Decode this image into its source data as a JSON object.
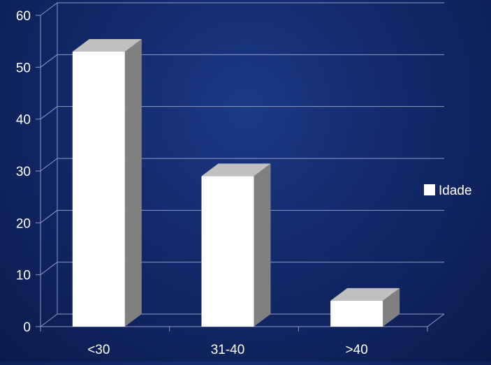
{
  "chart_data": {
    "type": "bar",
    "categories": [
      "<30",
      "31-40",
      ">40"
    ],
    "series": [
      {
        "name": "Idade",
        "values": [
          53,
          29,
          5
        ]
      }
    ],
    "ylim": [
      0,
      60
    ],
    "yticks": [
      0,
      10,
      20,
      30,
      40,
      50,
      60
    ],
    "grid": true,
    "legend": "right",
    "style": "3d-column",
    "colors": {
      "bar_front": "#ffffff",
      "bar_side": "#808080",
      "bar_top": "#c0c0c0",
      "grid": "#8c9bc4",
      "text": "#ffffff"
    }
  }
}
